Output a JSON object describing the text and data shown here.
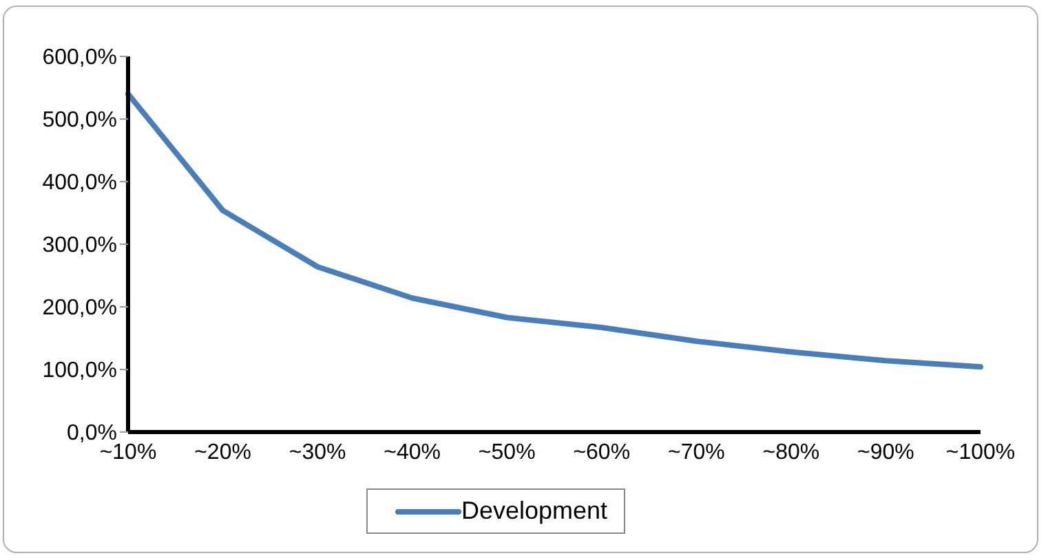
{
  "chart_data": {
    "type": "line",
    "categories": [
      "~10%",
      "~20%",
      "~30%",
      "~40%",
      "~50%",
      "~60%",
      "~70%",
      "~80%",
      "~90%",
      "~100%"
    ],
    "series": [
      {
        "name": "Development",
        "color": "#4a7ebb",
        "values": [
          540,
          354,
          264,
          214,
          183,
          167,
          145,
          128,
          114,
          104
        ]
      }
    ],
    "ylim": [
      0,
      600
    ],
    "yticks": [
      {
        "value": 0,
        "label": "0,0%"
      },
      {
        "value": 100,
        "label": "100,0%"
      },
      {
        "value": 200,
        "label": "200,0%"
      },
      {
        "value": 300,
        "label": "300,0%"
      },
      {
        "value": 400,
        "label": "400,0%"
      },
      {
        "value": 500,
        "label": "500,0%"
      },
      {
        "value": 600,
        "label": "600,0%"
      }
    ],
    "grid": false,
    "legend": "bottom",
    "marker": "none",
    "line_style": "solid"
  }
}
